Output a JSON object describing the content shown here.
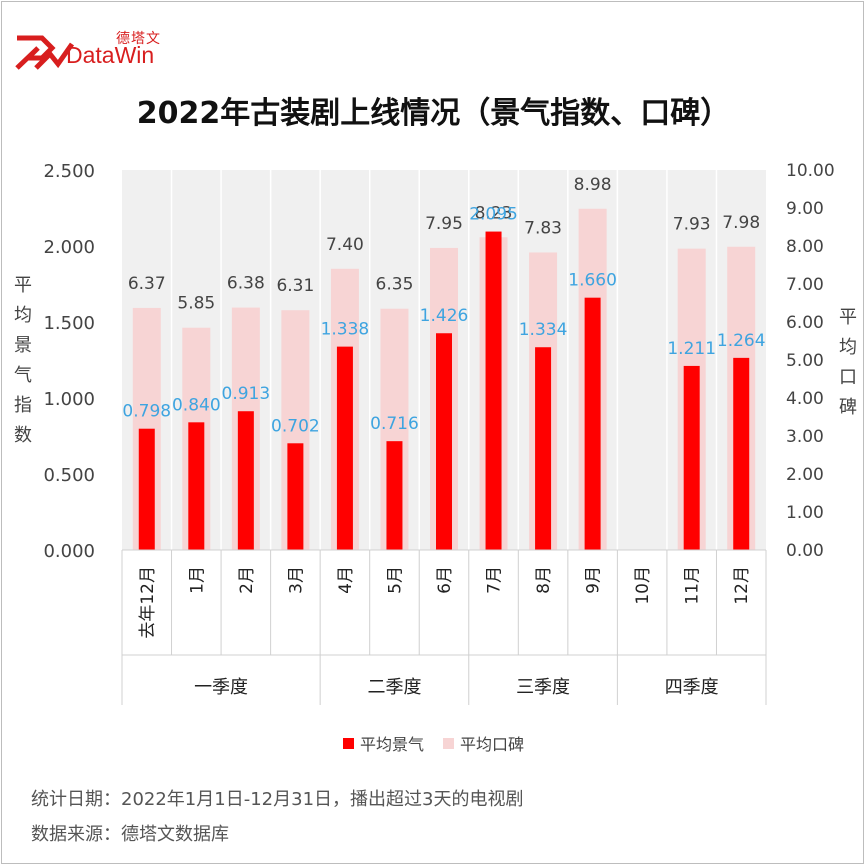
{
  "brand": {
    "cn": "德塔文",
    "en": "DataWin",
    "color": "#d81e1e"
  },
  "notes": {
    "stats_period": "统计日期：2022年1月1日-12月31日，播出超过3天的电视剧",
    "source": "数据来源：德塔文数据库"
  },
  "chart_data": {
    "type": "bar",
    "title": "2022年古装剧上线情况（景气指数、口碑）",
    "categories": [
      "去年12月",
      "1月",
      "2月",
      "3月",
      "4月",
      "5月",
      "6月",
      "7月",
      "8月",
      "9月",
      "10月",
      "11月",
      "12月"
    ],
    "groups": [
      {
        "label": "一季度",
        "span": 4
      },
      {
        "label": "二季度",
        "span": 3
      },
      {
        "label": "三季度",
        "span": 3
      },
      {
        "label": "四季度",
        "span": 3
      }
    ],
    "ylabel": "平均景气指数",
    "y2label": "平均口碑",
    "ylim": [
      0,
      2.5
    ],
    "y2lim": [
      0,
      10
    ],
    "yticks": [
      "0.000",
      "0.500",
      "1.000",
      "1.500",
      "2.000",
      "2.500"
    ],
    "y2ticks": [
      "0.00",
      "1.00",
      "2.00",
      "3.00",
      "4.00",
      "5.00",
      "6.00",
      "7.00",
      "8.00",
      "9.00",
      "10.00"
    ],
    "series": [
      {
        "name": "平均景气",
        "axis": "left",
        "color": "#ff0000",
        "labels": [
          "0.798",
          "0.840",
          "0.913",
          "0.702",
          "1.338",
          "0.716",
          "1.426",
          "2.095",
          "1.334",
          "1.660",
          "",
          "1.211",
          "1.264"
        ],
        "values": [
          0.798,
          0.84,
          0.913,
          0.702,
          1.338,
          0.716,
          1.426,
          2.095,
          1.334,
          1.66,
          null,
          1.211,
          1.264
        ]
      },
      {
        "name": "平均口碑",
        "axis": "right",
        "color": "#f7d4d4",
        "labels": [
          "6.37",
          "5.85",
          "6.38",
          "6.31",
          "7.40",
          "6.35",
          "7.95",
          "8.23",
          "7.83",
          "8.98",
          "",
          "7.93",
          "7.98"
        ],
        "values": [
          6.37,
          5.85,
          6.38,
          6.31,
          7.4,
          6.35,
          7.95,
          8.23,
          7.83,
          8.98,
          null,
          7.93,
          7.98
        ]
      }
    ],
    "colors": {
      "plot_bg": "#f0f0f0",
      "value_label_primary": "#3ea4e0",
      "value_label_secondary": "#444444"
    },
    "legend": "bottom",
    "grid": true
  }
}
